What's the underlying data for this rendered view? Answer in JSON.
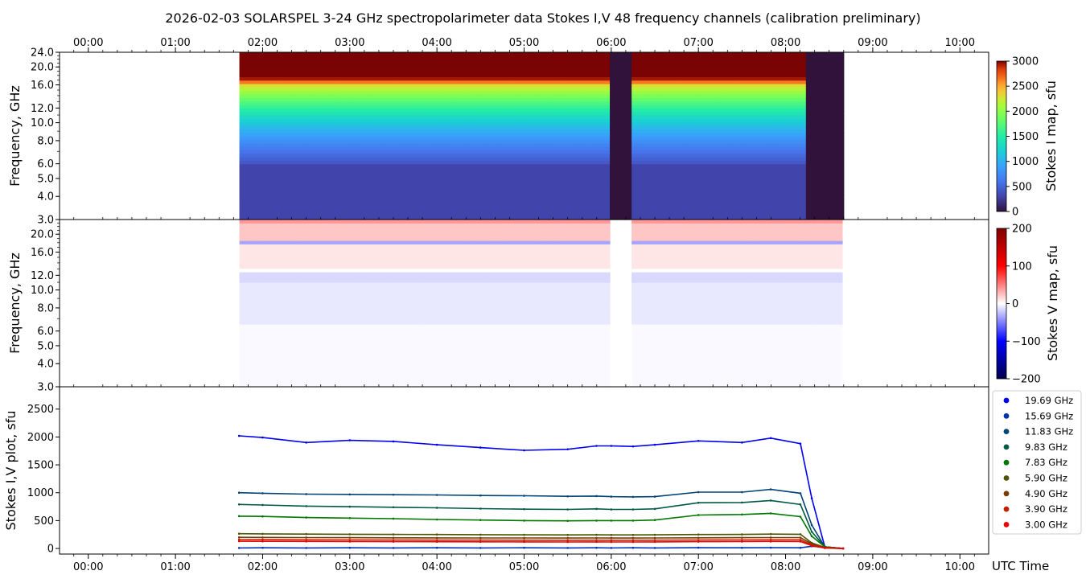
{
  "title": "2026-02-03  SOLARSPEL  3-24 GHz spectropolarimeter data   Stokes I,V   48 frequency channels   (calibration preliminary)",
  "x_axis_label": "UTC Time",
  "chart_data": [
    {
      "name": "stokes-i-map",
      "type": "heatmap",
      "ylabel": "Frequency, GHz",
      "y_ticks": [
        "3.0",
        "4.0",
        "5.0",
        "6.0",
        "8.0",
        "10.0",
        "12.0",
        "16.0",
        "20.0",
        "24.0"
      ],
      "y_tick_values": [
        3,
        4,
        5,
        6,
        8,
        10,
        12,
        16,
        20,
        24
      ],
      "y_scale": "log",
      "ylim": [
        3,
        24
      ],
      "colorbar": {
        "label": "Stokes I map, sfu",
        "ticks": [
          "0",
          "500",
          "1000",
          "1500",
          "2000",
          "2500",
          "3000"
        ],
        "range": [
          0,
          3000
        ],
        "colormap": "turbo"
      },
      "data_coverage_utc": [
        "01:44",
        "08:40"
      ],
      "gaps_utc": [
        [
          "06:00",
          "06:15"
        ]
      ]
    },
    {
      "name": "stokes-v-map",
      "type": "heatmap",
      "ylabel": "Frequency, GHz",
      "y_ticks": [
        "3.0",
        "4.0",
        "5.0",
        "6.0",
        "8.0",
        "10.0",
        "12.0",
        "16.0",
        "20.0"
      ],
      "y_tick_values": [
        3,
        4,
        5,
        6,
        8,
        10,
        12,
        16,
        20
      ],
      "y_scale": "log",
      "ylim": [
        3,
        24
      ],
      "colorbar": {
        "label": "Stokes V map, sfu",
        "ticks": [
          "200",
          "100",
          "0",
          "−100",
          "−200"
        ],
        "range": [
          -200,
          200
        ],
        "colormap": "seismic"
      }
    },
    {
      "name": "stokes-iv-plot",
      "type": "scatter",
      "ylabel": "Stokes I,V plot, sfu",
      "y_ticks": [
        "0",
        "500",
        "1000",
        "1500",
        "2000",
        "2500"
      ],
      "ylim": [
        -100,
        2900
      ],
      "x_hours": [
        1.73,
        2.0,
        2.5,
        3.0,
        3.5,
        4.0,
        4.5,
        5.0,
        5.5,
        5.83,
        6.0,
        6.25,
        6.5,
        7.0,
        7.5,
        7.83,
        8.17,
        8.3,
        8.45,
        8.66
      ],
      "series": [
        {
          "name": "19.69 GHz",
          "color": "#0000ee",
          "values": [
            2020,
            1990,
            1900,
            1940,
            1920,
            1860,
            1810,
            1760,
            1780,
            1840,
            1840,
            1830,
            1860,
            1930,
            1900,
            1980,
            1880,
            900,
            30,
            0
          ]
        },
        {
          "name": "15.69 GHz",
          "color": "#0033aa",
          "values": [
            10,
            12,
            10,
            12,
            10,
            12,
            10,
            12,
            10,
            12,
            10,
            12,
            10,
            14,
            12,
            14,
            12,
            40,
            20,
            0
          ]
        },
        {
          "name": "11.83 GHz",
          "color": "#004477",
          "values": [
            1000,
            990,
            975,
            970,
            965,
            960,
            950,
            945,
            935,
            940,
            930,
            925,
            930,
            1010,
            1010,
            1060,
            990,
            420,
            30,
            0
          ]
        },
        {
          "name": "9.83 GHz",
          "color": "#005a44",
          "values": [
            790,
            780,
            760,
            750,
            740,
            730,
            715,
            705,
            700,
            710,
            700,
            700,
            710,
            820,
            825,
            860,
            790,
            300,
            30,
            0
          ]
        },
        {
          "name": "7.83 GHz",
          "color": "#007700",
          "values": [
            580,
            575,
            555,
            545,
            535,
            520,
            510,
            500,
            495,
            500,
            500,
            500,
            510,
            600,
            610,
            630,
            570,
            220,
            30,
            0
          ]
        },
        {
          "name": "5.90 GHz",
          "color": "#4d5500",
          "values": [
            265,
            262,
            258,
            255,
            252,
            250,
            248,
            245,
            243,
            245,
            243,
            243,
            245,
            250,
            252,
            258,
            255,
            100,
            20,
            0
          ]
        },
        {
          "name": "4.90 GHz",
          "color": "#7a3a00",
          "values": [
            200,
            198,
            196,
            194,
            192,
            190,
            189,
            188,
            187,
            188,
            187,
            187,
            188,
            192,
            194,
            196,
            195,
            80,
            15,
            0
          ]
        },
        {
          "name": "3.90 GHz",
          "color": "#c02000",
          "values": [
            160,
            158,
            156,
            154,
            152,
            150,
            149,
            148,
            147,
            148,
            147,
            147,
            148,
            152,
            154,
            156,
            155,
            60,
            10,
            0
          ]
        },
        {
          "name": "3.00 GHz",
          "color": "#ee0000",
          "values": [
            130,
            128,
            126,
            124,
            122,
            120,
            119,
            118,
            117,
            118,
            117,
            117,
            118,
            122,
            124,
            126,
            125,
            50,
            8,
            0
          ]
        }
      ]
    }
  ],
  "x_ticks": [
    "00:00",
    "01:00",
    "02:00",
    "03:00",
    "04:00",
    "05:00",
    "06:00",
    "07:00",
    "08:00",
    "09:00",
    "10:00"
  ],
  "x_tick_values": [
    0,
    1,
    2,
    3,
    4,
    5,
    6,
    7,
    8,
    9,
    10
  ],
  "xlim_hours": [
    -0.33,
    10.33
  ],
  "colors": {
    "v_negative": "#0000cc",
    "v_positive": "#dd0000"
  }
}
